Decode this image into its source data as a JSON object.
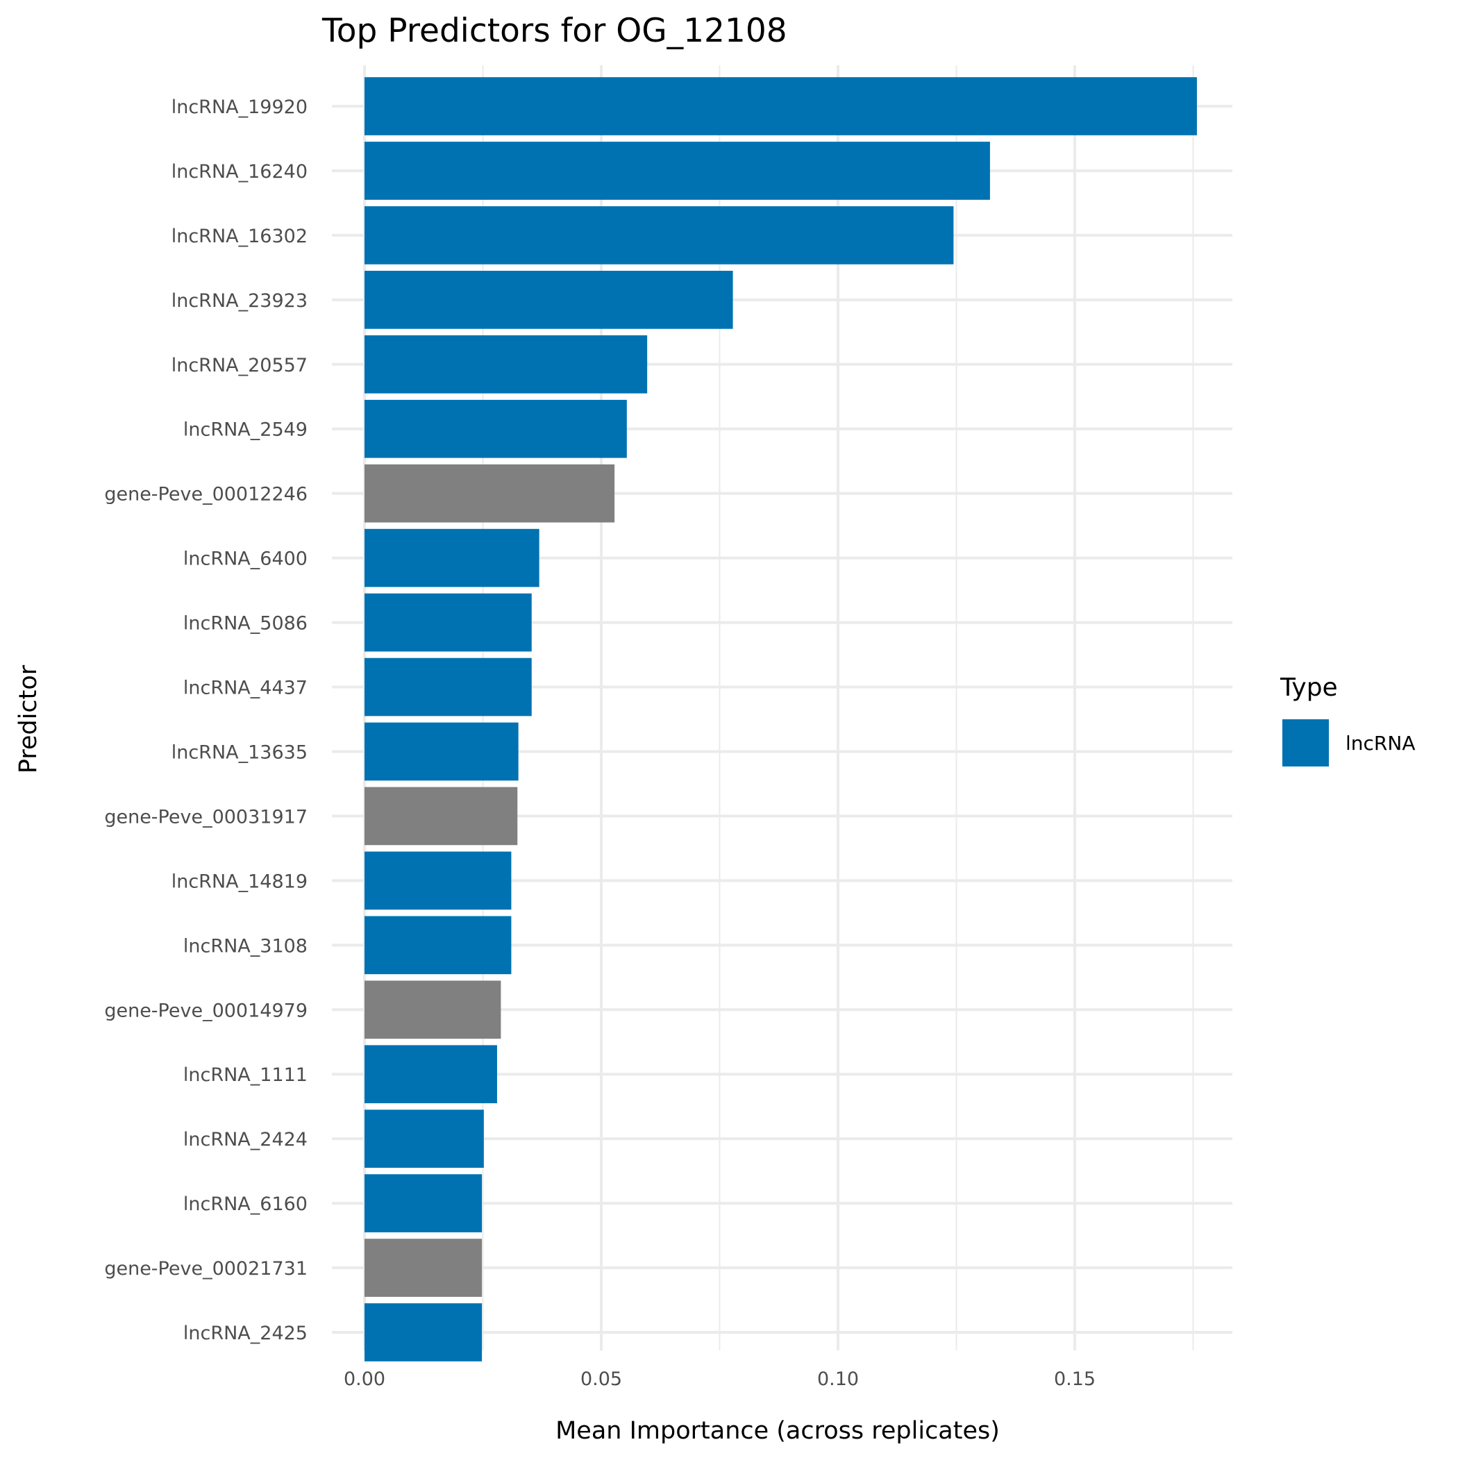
{
  "chart_data": {
    "type": "bar",
    "orientation": "horizontal",
    "title": "Top Predictors for OG_12108",
    "xlabel": "Mean Importance (across replicates)",
    "ylabel": "Predictor",
    "xlim": [
      0,
      0.185
    ],
    "xticks": [
      0,
      0.05,
      0.1,
      0.15
    ],
    "xtick_labels": [
      "0.00",
      "0.05",
      "0.10",
      "0.15"
    ],
    "grid": true,
    "categories": [
      "lncRNA_19920",
      "lncRNA_16240",
      "lncRNA_16302",
      "lncRNA_23923",
      "lncRNA_20557",
      "lncRNA_2549",
      "gene-Peve_00012246",
      "lncRNA_6400",
      "lncRNA_5086",
      "lncRNA_4437",
      "lncRNA_13635",
      "gene-Peve_00031917",
      "lncRNA_14819",
      "lncRNA_3108",
      "gene-Peve_00014979",
      "lncRNA_1111",
      "lncRNA_2424",
      "lncRNA_6160",
      "gene-Peve_00021731",
      "lncRNA_2425"
    ],
    "values": [
      0.1758,
      0.1321,
      0.1244,
      0.0778,
      0.0597,
      0.0554,
      0.0528,
      0.0369,
      0.0353,
      0.0353,
      0.0325,
      0.0323,
      0.031,
      0.031,
      0.0288,
      0.028,
      0.0252,
      0.0248,
      0.0248,
      0.0248
    ],
    "types": [
      "lncRNA",
      "lncRNA",
      "lncRNA",
      "lncRNA",
      "lncRNA",
      "lncRNA",
      "gene",
      "lncRNA",
      "lncRNA",
      "lncRNA",
      "lncRNA",
      "gene",
      "lncRNA",
      "lncRNA",
      "gene",
      "lncRNA",
      "lncRNA",
      "lncRNA",
      "gene",
      "lncRNA"
    ],
    "colors": {
      "lncRNA": "#0072B2",
      "gene": "#808080"
    },
    "legend": {
      "title": "Type",
      "entries": [
        "lncRNA"
      ],
      "placement": "right"
    }
  }
}
